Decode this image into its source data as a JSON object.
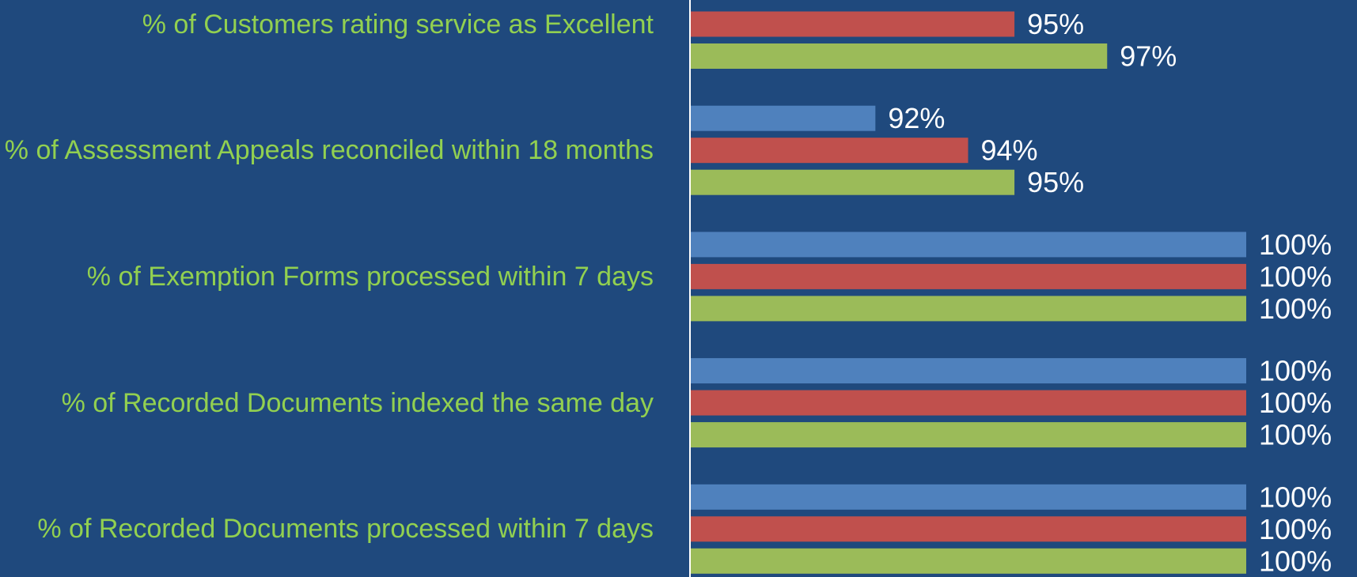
{
  "chart_data": {
    "type": "bar",
    "orientation": "horizontal",
    "categories": [
      "% of Customers rating service as Excellent",
      "% of Assessment Appeals reconciled within 18 months",
      "% of Exemption Forms processed within 7 days",
      "% of Recorded Documents indexed the same day",
      "% of Recorded Documents processed within 7 days"
    ],
    "series": [
      {
        "color": "#4f81bd",
        "values": [
          null,
          92,
          100,
          100,
          100
        ],
        "value_labels": [
          null,
          "92%",
          "100%",
          "100%",
          "100%"
        ]
      },
      {
        "color": "#c0504d",
        "values": [
          95,
          94,
          100,
          100,
          100
        ],
        "value_labels": [
          "95%",
          "94%",
          "100%",
          "100%",
          "100%"
        ]
      },
      {
        "color": "#9bbb59",
        "values": [
          97,
          95,
          100,
          100,
          100
        ],
        "value_labels": [
          "97%",
          "95%",
          "100%",
          "100%",
          "100%"
        ]
      }
    ],
    "xlim": [
      88,
      100
    ],
    "background": "#1f497d",
    "label_color": "#92d050"
  }
}
